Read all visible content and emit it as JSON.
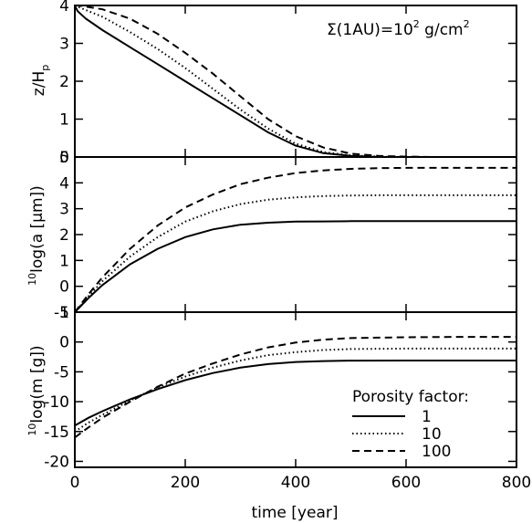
{
  "chart_data": [
    {
      "type": "line",
      "panel": "top",
      "ylabel_main": "z/H",
      "ylabel_sub": "p",
      "xlim": [
        0,
        800
      ],
      "ylim": [
        0,
        4
      ],
      "yticks": [
        "0",
        "1",
        "2",
        "3",
        "4"
      ],
      "annotation_main": "Σ(1AU)=10",
      "annotation_sup": "2",
      "annotation_unit": " g/cm",
      "annotation_unit_sup": "2",
      "series": [
        {
          "style": "solid",
          "x": [
            0,
            5,
            20,
            50,
            100,
            150,
            200,
            250,
            300,
            350,
            400,
            450,
            500,
            550,
            600,
            650,
            700,
            750,
            800
          ],
          "y": [
            4.0,
            3.85,
            3.65,
            3.35,
            2.9,
            2.45,
            2.0,
            1.55,
            1.1,
            0.65,
            0.3,
            0.1,
            0.03,
            0.0,
            0.0,
            0.0,
            0.0,
            0.0,
            0.0
          ]
        },
        {
          "style": "dotted",
          "x": [
            0,
            5,
            20,
            50,
            100,
            150,
            200,
            250,
            300,
            350,
            400,
            450,
            500,
            550,
            600,
            650,
            700,
            750,
            800
          ],
          "y": [
            4.0,
            3.97,
            3.88,
            3.7,
            3.3,
            2.85,
            2.35,
            1.8,
            1.25,
            0.75,
            0.35,
            0.13,
            0.04,
            0.01,
            0.0,
            0.0,
            0.0,
            0.0,
            0.0
          ]
        },
        {
          "style": "dashed",
          "x": [
            0,
            5,
            20,
            50,
            100,
            150,
            200,
            250,
            300,
            350,
            400,
            450,
            500,
            550,
            600,
            650,
            700,
            750,
            800
          ],
          "y": [
            4.0,
            4.0,
            3.97,
            3.9,
            3.65,
            3.25,
            2.75,
            2.2,
            1.6,
            1.0,
            0.55,
            0.25,
            0.09,
            0.03,
            0.01,
            0.0,
            0.0,
            0.0,
            0.0
          ]
        }
      ]
    },
    {
      "type": "line",
      "panel": "middle",
      "ylabel_sup": "10",
      "ylabel_main": "log(a [μm])",
      "xlim": [
        0,
        800
      ],
      "ylim": [
        -1,
        5
      ],
      "yticks": [
        "-1",
        "0",
        "1",
        "2",
        "3",
        "4",
        "5"
      ],
      "series": [
        {
          "style": "solid",
          "x": [
            0,
            25,
            50,
            100,
            150,
            200,
            250,
            300,
            350,
            400,
            450,
            500,
            550,
            600,
            700,
            800
          ],
          "y": [
            -1.0,
            -0.45,
            0.05,
            0.85,
            1.45,
            1.9,
            2.2,
            2.38,
            2.46,
            2.5,
            2.51,
            2.52,
            2.52,
            2.52,
            2.52,
            2.52
          ]
        },
        {
          "style": "dotted",
          "x": [
            0,
            25,
            50,
            100,
            150,
            200,
            250,
            300,
            350,
            400,
            450,
            500,
            550,
            600,
            700,
            800
          ],
          "y": [
            -1.0,
            -0.38,
            0.2,
            1.15,
            1.9,
            2.5,
            2.9,
            3.18,
            3.35,
            3.44,
            3.49,
            3.51,
            3.52,
            3.52,
            3.52,
            3.52
          ]
        },
        {
          "style": "dashed",
          "x": [
            0,
            25,
            50,
            100,
            150,
            200,
            250,
            300,
            350,
            400,
            450,
            500,
            550,
            600,
            700,
            800
          ],
          "y": [
            -1.0,
            -0.3,
            0.35,
            1.45,
            2.35,
            3.05,
            3.55,
            3.95,
            4.2,
            4.38,
            4.48,
            4.54,
            4.57,
            4.58,
            4.58,
            4.58
          ]
        }
      ]
    },
    {
      "type": "line",
      "panel": "bottom",
      "ylabel_sup": "10",
      "ylabel_main": "log(m [g])",
      "xlabel": "time [year]",
      "xlim": [
        0,
        800
      ],
      "ylim": [
        -21,
        5
      ],
      "xticks": [
        "0",
        "200",
        "400",
        "600",
        "800"
      ],
      "yticks": [
        "-20",
        "-15",
        "-10",
        "-5",
        "0",
        "5"
      ],
      "legend_title": "Porosity factor:",
      "series": [
        {
          "name": "1",
          "style": "solid",
          "x": [
            0,
            25,
            50,
            100,
            150,
            200,
            250,
            300,
            350,
            400,
            450,
            500,
            600,
            700,
            800
          ],
          "y": [
            -14.0,
            -12.7,
            -11.6,
            -9.6,
            -7.9,
            -6.4,
            -5.2,
            -4.3,
            -3.7,
            -3.35,
            -3.2,
            -3.12,
            -3.1,
            -3.1,
            -3.1
          ]
        },
        {
          "name": "10",
          "style": "dotted",
          "x": [
            0,
            25,
            50,
            100,
            150,
            200,
            250,
            300,
            350,
            400,
            450,
            500,
            600,
            700,
            800
          ],
          "y": [
            -15.0,
            -13.5,
            -12.2,
            -9.8,
            -7.6,
            -5.8,
            -4.3,
            -3.1,
            -2.2,
            -1.7,
            -1.35,
            -1.18,
            -1.1,
            -1.1,
            -1.1
          ]
        },
        {
          "name": "100",
          "style": "dashed",
          "x": [
            0,
            25,
            50,
            100,
            150,
            200,
            250,
            300,
            350,
            400,
            450,
            500,
            600,
            700,
            800
          ],
          "y": [
            -16.0,
            -14.3,
            -12.7,
            -10.0,
            -7.5,
            -5.3,
            -3.6,
            -2.1,
            -0.9,
            -0.1,
            0.4,
            0.65,
            0.8,
            0.85,
            0.85
          ]
        }
      ]
    }
  ]
}
